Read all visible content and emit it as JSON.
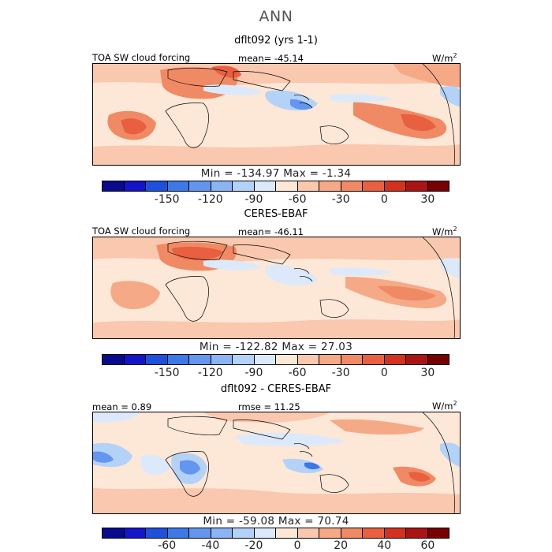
{
  "title": "ANN",
  "panels": [
    {
      "subtitle": "dflt092 (yrs 1-1)",
      "left_label": "TOA SW cloud forcing",
      "center_label": "mean=  -45.14",
      "units": "W/m",
      "units_exp": "2",
      "minmax": "Min = -134.97  Max =   -1.34",
      "colorbar_ticks": [
        "-150",
        "-120",
        "-90",
        "-60",
        "-30",
        "0",
        "30"
      ]
    },
    {
      "subtitle": "CERES-EBAF",
      "left_label": "TOA SW cloud forcing",
      "center_label": "mean=  -46.11",
      "units": "W/m",
      "units_exp": "2",
      "minmax": "Min = -122.82  Max =   27.03",
      "colorbar_ticks": [
        "-150",
        "-120",
        "-90",
        "-60",
        "-30",
        "0",
        "30"
      ]
    },
    {
      "subtitle": "dflt092 - CERES-EBAF",
      "left_label": "mean =   0.89",
      "center_label": "rmse =   11.25",
      "units": "W/m",
      "units_exp": "2",
      "minmax": "Min = -59.08  Max =   70.74",
      "colorbar_ticks": [
        "-60",
        "-40",
        "-20",
        "0",
        "20",
        "40",
        "60"
      ]
    }
  ],
  "colorbar_colors": [
    "#0a0a8c",
    "#1414c8",
    "#1e50dc",
    "#3c78e6",
    "#6496f0",
    "#8cb4f5",
    "#b4d2f8",
    "#dce9fb",
    "#fde7d7",
    "#f9c8ae",
    "#f5a987",
    "#f08a64",
    "#e86040",
    "#d2321e",
    "#aa1414",
    "#780000"
  ],
  "map_colors": {
    "background": "#fdfaf7",
    "light_red": "#f9c8ae",
    "mid_red": "#f5a987",
    "strong_red": "#f08a64",
    "deep_red": "#e86040",
    "light_blue": "#dce9fb",
    "mid_blue": "#b4d2f8",
    "strong_blue": "#6496f0",
    "coast": "#000000"
  }
}
